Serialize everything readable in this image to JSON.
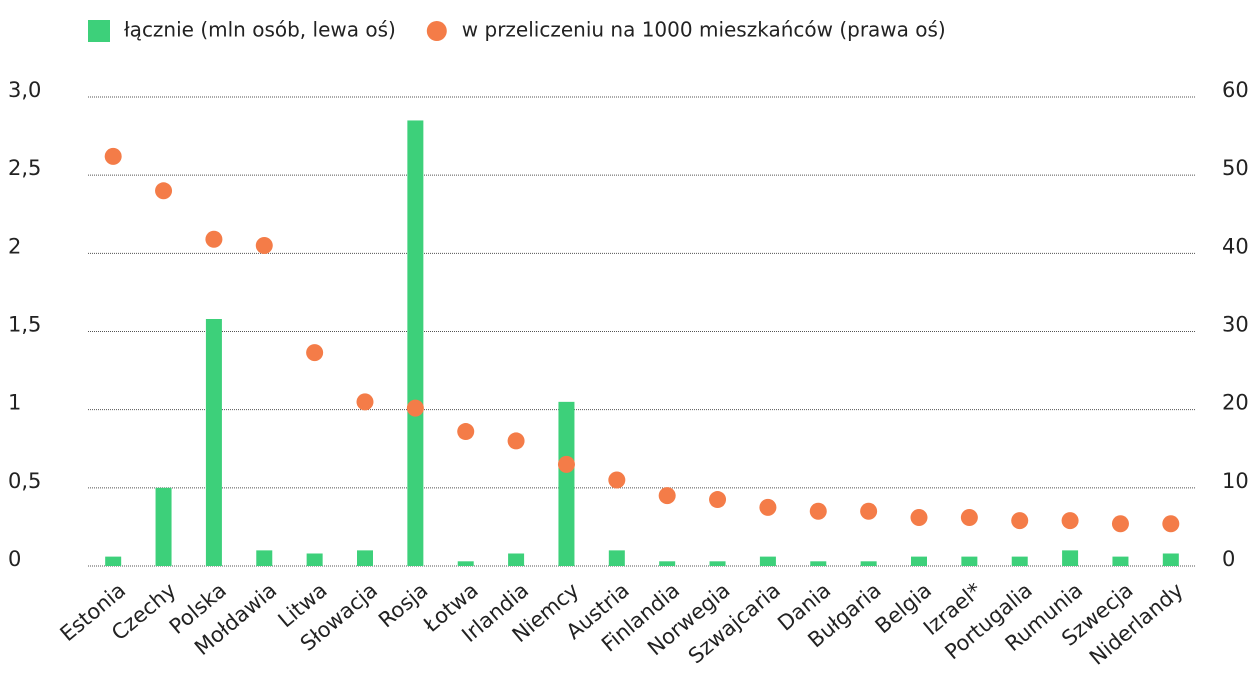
{
  "chart_data": {
    "type": "bar",
    "categories": [
      "Estonia",
      "Czechy",
      "Polska",
      "Mołdawia",
      "Litwa",
      "Słowacja",
      "Rosja",
      "Łotwa",
      "Irlandia",
      "Niemcy",
      "Austria",
      "Finlandia",
      "Norwegia",
      "Szwajcaria",
      "Dania",
      "Bułgaria",
      "Belgia",
      "Izrael*",
      "Portugalia",
      "Rumunia",
      "Szwecja",
      "Niderlandy"
    ],
    "series": [
      {
        "name": "łącznie (mln osób, lewa oś)",
        "color": "#3dd07a",
        "type": "bar",
        "values": [
          0.06,
          0.5,
          1.58,
          0.1,
          0.08,
          0.1,
          2.85,
          0.03,
          0.08,
          1.05,
          0.1,
          0.03,
          0.03,
          0.06,
          0.03,
          0.03,
          0.06,
          0.06,
          0.06,
          0.1,
          0.06,
          0.08
        ]
      },
      {
        "name": "w przeliczeniu na 1000 mieszkańców (prawa oś)",
        "color": "#f47c48",
        "type": "scatter",
        "axis": "y2",
        "values": [
          52.4,
          48,
          41.8,
          41,
          27.3,
          21,
          20.2,
          17.2,
          16,
          13,
          11,
          9,
          8.5,
          7.5,
          7,
          7,
          6.2,
          6.2,
          5.8,
          5.8,
          5.4,
          5.4
        ]
      }
    ],
    "ylim": [
      0,
      3
    ],
    "yticks": [
      0,
      {
        "value": 0.5,
        "label": "0,5"
      },
      1,
      {
        "value": 1.5,
        "label": "1,5"
      },
      2,
      {
        "value": 2.5,
        "label": "2,5"
      },
      {
        "value": 3,
        "label": "3,0"
      }
    ],
    "y2lim": [
      0,
      60
    ],
    "y2ticks": [
      0,
      10,
      20,
      30,
      40,
      50,
      60
    ],
    "grid": true
  }
}
